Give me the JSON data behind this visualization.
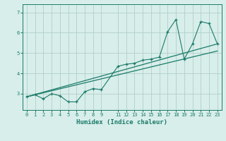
{
  "xlabel": "Humidex (Indice chaleur)",
  "bg_color": "#d8eeea",
  "grid_color": "#b0d0c8",
  "line_color": "#1a7a6a",
  "xlim": [
    -0.5,
    23.5
  ],
  "ylim": [
    2.2,
    7.4
  ],
  "xticks": [
    0,
    1,
    2,
    3,
    4,
    5,
    6,
    7,
    8,
    9,
    11,
    12,
    13,
    14,
    15,
    16,
    17,
    18,
    19,
    20,
    21,
    22,
    23
  ],
  "yticks": [
    3,
    4,
    5,
    6,
    7
  ],
  "line1_x": [
    0,
    1,
    2,
    3,
    4,
    5,
    6,
    7,
    8,
    9,
    11,
    12,
    13,
    14,
    15,
    16,
    17,
    18,
    19,
    20,
    21,
    22,
    23
  ],
  "line1_y": [
    2.85,
    2.95,
    2.75,
    3.0,
    2.9,
    2.6,
    2.6,
    3.1,
    3.25,
    3.2,
    4.35,
    4.45,
    4.5,
    4.65,
    4.7,
    4.8,
    6.05,
    6.65,
    4.7,
    5.45,
    6.55,
    6.45,
    5.45
  ],
  "line2_x": [
    0,
    23
  ],
  "line2_y": [
    2.85,
    5.45
  ],
  "line3_x": [
    0,
    23
  ],
  "line3_y": [
    2.85,
    5.1
  ]
}
